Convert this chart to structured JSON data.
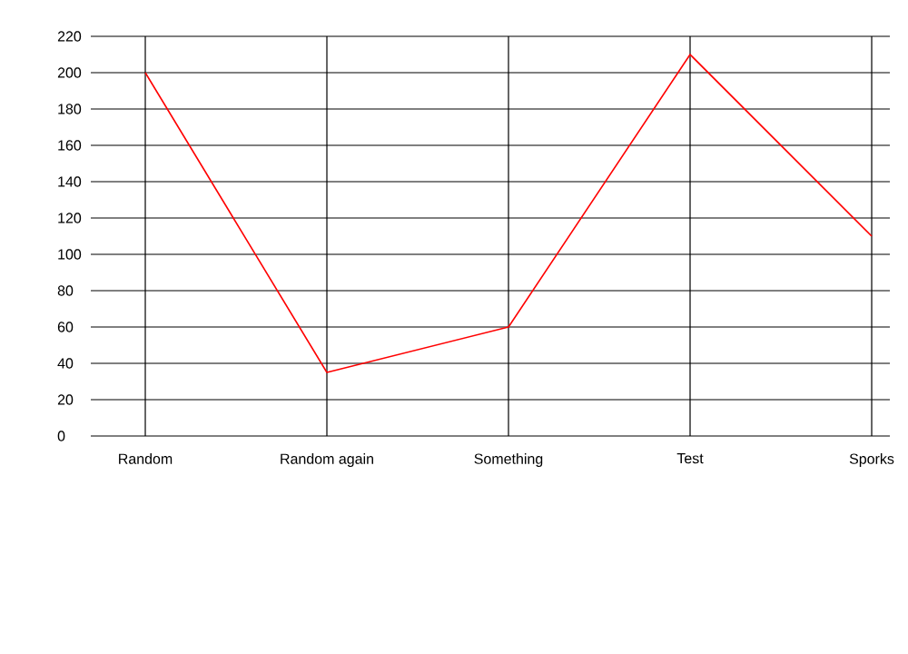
{
  "chart_data": {
    "type": "line",
    "categories": [
      "Random",
      "Random again",
      "Something",
      "Test",
      "Sporks"
    ],
    "series": [
      {
        "color": "#ff0000",
        "values": [
          200,
          35,
          60,
          210,
          110
        ]
      }
    ],
    "ylim": [
      0,
      220
    ],
    "yticks": [
      0,
      20,
      40,
      60,
      80,
      100,
      120,
      140,
      160,
      180,
      200,
      220
    ],
    "grid": true,
    "marker": "none",
    "line_style": "solid"
  }
}
